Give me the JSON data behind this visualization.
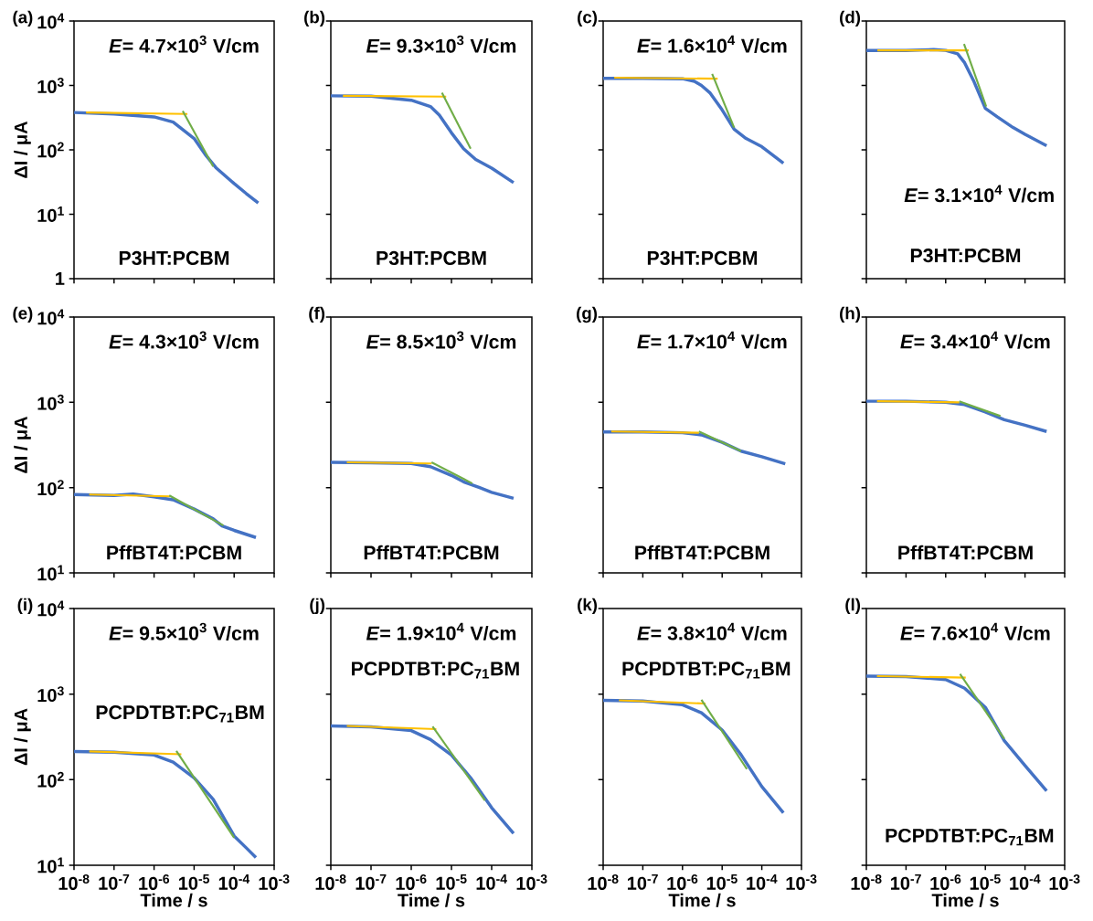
{
  "chart_data": [
    {
      "type": "line",
      "title": "(a)",
      "ylabel": "ΔI / μA",
      "log": "xy",
      "tick_labels": "y",
      "xlim": [
        1e-08,
        0.001
      ],
      "ylim": [
        1,
        10000
      ],
      "xticks": [
        {
          "value": 1e-08,
          "label": null
        },
        {
          "value": 1e-07,
          "label": null
        },
        {
          "value": 1e-06,
          "label": null
        },
        {
          "value": 1e-05,
          "label": null
        },
        {
          "value": 0.0001,
          "label": null
        },
        {
          "value": 0.001,
          "label": null
        }
      ],
      "yticks": [
        1,
        {
          "value": 10,
          "label": "10$^{1}$"
        },
        {
          "value": 100,
          "label": "10$^{2}$"
        },
        {
          "value": 1000,
          "label": "10$^{3}$"
        },
        {
          "value": 10000,
          "label": "10$^{4}$"
        }
      ],
      "annotations": [
        "*E*= 4.7×10$^{3}$ V/cm",
        "P3HT:PCBM"
      ],
      "series": [
        {
          "type": "line",
          "color": "#4472c4",
          "x": [
            1e-08,
            1e-07,
            1e-06,
            3e-06,
            1e-05,
            2e-05,
            3.5e-05,
            0.0001,
            0.0002,
            0.0004
          ],
          "values": [
            380,
            360,
            325,
            270,
            150,
            81,
            53,
            30,
            21,
            15
          ]
        },
        {
          "type": "line",
          "color": "#ffc000",
          "x": [
            2e-08,
            6.8e-06
          ],
          "values": [
            380,
            360
          ]
        },
        {
          "type": "line",
          "color": "#70ad47",
          "x": [
            5.2e-06,
            3e-05
          ],
          "values": [
            400,
            55
          ]
        }
      ]
    },
    {
      "type": "line",
      "title": "(b)",
      "log": "xy",
      "tick_labels": false,
      "xlim": [
        1e-08,
        0.001
      ],
      "ylim": [
        1,
        10000
      ],
      "xticks": [
        {
          "value": 1e-08,
          "label": null
        },
        {
          "value": 1e-07,
          "label": null
        },
        {
          "value": 1e-06,
          "label": null
        },
        {
          "value": 1e-05,
          "label": null
        },
        {
          "value": 0.0001,
          "label": null
        },
        {
          "value": 0.001,
          "label": null
        }
      ],
      "yticks": [
        {
          "value": 1,
          "label": null
        },
        {
          "value": 10,
          "label": null
        },
        {
          "value": 100,
          "label": null
        },
        {
          "value": 1000,
          "label": null
        },
        {
          "value": 10000,
          "label": null
        }
      ],
      "annotations": [
        "*E*= 9.3×10$^{3}$ V/cm",
        "P3HT:PCBM"
      ],
      "series": [
        {
          "type": "line",
          "color": "#4472c4",
          "x": [
            1e-08,
            1e-07,
            1e-06,
            3e-06,
            5e-06,
            1e-05,
            2e-05,
            4e-05,
            0.0001,
            0.00035
          ],
          "values": [
            690,
            680,
            590,
            470,
            345,
            184,
            104,
            71,
            52,
            31
          ]
        },
        {
          "type": "line",
          "color": "#ffc000",
          "x": [
            2e-08,
            7.4e-06
          ],
          "values": [
            690,
            670
          ]
        },
        {
          "type": "line",
          "color": "#70ad47",
          "x": [
            5.8e-06,
            3e-05
          ],
          "values": [
            770,
            104
          ]
        }
      ]
    },
    {
      "type": "line",
      "title": "(c)",
      "log": "xy",
      "tick_labels": false,
      "xlim": [
        1e-08,
        0.001
      ],
      "ylim": [
        1,
        10000
      ],
      "xticks": [
        {
          "value": 1e-08,
          "label": null
        },
        {
          "value": 1e-07,
          "label": null
        },
        {
          "value": 1e-06,
          "label": null
        },
        {
          "value": 1e-05,
          "label": null
        },
        {
          "value": 0.0001,
          "label": null
        },
        {
          "value": 0.001,
          "label": null
        }
      ],
      "yticks": [
        {
          "value": 1,
          "label": null
        },
        {
          "value": 10,
          "label": null
        },
        {
          "value": 100,
          "label": null
        },
        {
          "value": 1000,
          "label": null
        },
        {
          "value": 10000,
          "label": null
        }
      ],
      "annotations": [
        "*E*= 1.6×10$^{4}$ V/cm",
        "P3HT:PCBM"
      ],
      "series": [
        {
          "type": "line",
          "color": "#4472c4",
          "x": [
            1e-08,
            1e-07,
            1e-06,
            2e-06,
            3e-06,
            5e-06,
            1e-05,
            2e-05,
            4e-05,
            0.0001,
            0.00035
          ],
          "values": [
            1290,
            1290,
            1270,
            1160,
            1000,
            760,
            416,
            210,
            150,
            112,
            62
          ]
        },
        {
          "type": "line",
          "color": "#ffc000",
          "x": [
            1.9e-08,
            7.7e-06
          ],
          "values": [
            1320,
            1270
          ]
        },
        {
          "type": "line",
          "color": "#70ad47",
          "x": [
            5.6e-06,
            2e-05
          ],
          "values": [
            1510,
            222
          ]
        }
      ]
    },
    {
      "type": "line",
      "title": "(d)",
      "log": "xy",
      "tick_labels": false,
      "xlim": [
        1e-08,
        0.001
      ],
      "ylim": [
        1,
        10000
      ],
      "xticks": [
        {
          "value": 1e-08,
          "label": null
        },
        {
          "value": 1e-07,
          "label": null
        },
        {
          "value": 1e-06,
          "label": null
        },
        {
          "value": 1e-05,
          "label": null
        },
        {
          "value": 0.0001,
          "label": null
        },
        {
          "value": 0.001,
          "label": null
        }
      ],
      "yticks": [
        {
          "value": 1,
          "label": null
        },
        {
          "value": 10,
          "label": null
        },
        {
          "value": 100,
          "label": null
        },
        {
          "value": 1000,
          "label": null
        },
        {
          "value": 10000,
          "label": null
        }
      ],
      "annotations": [
        "*E*= 3.1×10$^{4}$ V/cm",
        "P3HT:PCBM"
      ],
      "series": [
        {
          "type": "line",
          "color": "#4472c4",
          "x": [
            1e-08,
            1e-07,
            5e-07,
            1e-06,
            2e-06,
            3e-06,
            5e-06,
            1e-05,
            2e-05,
            5e-05,
            0.0001,
            0.00035
          ],
          "values": [
            3500,
            3500,
            3600,
            3500,
            3100,
            2250,
            1200,
            440,
            325,
            222,
            174,
            116
          ]
        },
        {
          "type": "line",
          "color": "#ffc000",
          "x": [
            1.9e-08,
            3.8e-06
          ],
          "values": [
            3500,
            3500
          ]
        },
        {
          "type": "line",
          "color": "#70ad47",
          "x": [
            2.9e-06,
            1.05e-05
          ],
          "values": [
            4400,
            470
          ]
        }
      ]
    },
    {
      "type": "line",
      "title": "(e)",
      "ylabel": "ΔI / μA",
      "log": "xy",
      "tick_labels": "y",
      "xlim": [
        1e-08,
        0.001
      ],
      "ylim": [
        10,
        10000
      ],
      "xticks": [
        {
          "value": 1e-08,
          "label": null
        },
        {
          "value": 1e-07,
          "label": null
        },
        {
          "value": 1e-06,
          "label": null
        },
        {
          "value": 1e-05,
          "label": null
        },
        {
          "value": 0.0001,
          "label": null
        },
        {
          "value": 0.001,
          "label": null
        }
      ],
      "yticks": [
        {
          "value": 10,
          "label": "10$^{1}$"
        },
        {
          "value": 100,
          "label": "10$^{2}$"
        },
        {
          "value": 1000,
          "label": "10$^{3}$"
        },
        {
          "value": 10000,
          "label": "10$^{4}$"
        }
      ],
      "annotations": [
        "*E*= 4.3×10$^{3}$ V/cm",
        "PffBT4T:PCBM"
      ],
      "series": [
        {
          "type": "line",
          "color": "#4472c4",
          "x": [
            1e-08,
            1e-07,
            3e-07,
            1e-06,
            3e-06,
            1e-05,
            3e-05,
            5e-05,
            0.0001,
            0.00035
          ],
          "values": [
            83,
            81,
            84,
            78,
            72,
            56,
            43,
            35.5,
            31.5,
            26
          ]
        },
        {
          "type": "line",
          "color": "#ffc000",
          "x": [
            2.4e-08,
            2.5e-06
          ],
          "values": [
            83,
            79
          ]
        },
        {
          "type": "line",
          "color": "#70ad47",
          "x": [
            2.4e-06,
            5.4e-05
          ],
          "values": [
            81,
            36
          ]
        }
      ]
    },
    {
      "type": "line",
      "title": "(f)",
      "log": "xy",
      "tick_labels": false,
      "xlim": [
        1e-08,
        0.001
      ],
      "ylim": [
        10,
        10000
      ],
      "xticks": [
        {
          "value": 1e-08,
          "label": null
        },
        {
          "value": 1e-07,
          "label": null
        },
        {
          "value": 1e-06,
          "label": null
        },
        {
          "value": 1e-05,
          "label": null
        },
        {
          "value": 0.0001,
          "label": null
        },
        {
          "value": 0.001,
          "label": null
        }
      ],
      "yticks": [
        {
          "value": 10,
          "label": null
        },
        {
          "value": 100,
          "label": null
        },
        {
          "value": 1000,
          "label": null
        },
        {
          "value": 10000,
          "label": null
        }
      ],
      "annotations": [
        "*E*= 8.5×10$^{3}$ V/cm",
        "PffBT4T:PCBM"
      ],
      "series": [
        {
          "type": "line",
          "color": "#4472c4",
          "x": [
            1e-08,
            1e-07,
            1e-06,
            3e-06,
            1e-05,
            2e-05,
            5e-05,
            0.0001,
            0.00035
          ],
          "values": [
            198,
            195,
            192,
            176,
            139,
            117,
            100,
            88,
            75
          ]
        },
        {
          "type": "line",
          "color": "#ffc000",
          "x": [
            2.5e-08,
            3.2e-06
          ],
          "values": [
            198,
            192
          ]
        },
        {
          "type": "line",
          "color": "#70ad47",
          "x": [
            3.2e-06,
            3.3e-05
          ],
          "values": [
            198,
            112
          ]
        }
      ]
    },
    {
      "type": "line",
      "title": "(g)",
      "log": "xy",
      "tick_labels": false,
      "xlim": [
        1e-08,
        0.001
      ],
      "ylim": [
        10,
        10000
      ],
      "xticks": [
        {
          "value": 1e-08,
          "label": null
        },
        {
          "value": 1e-07,
          "label": null
        },
        {
          "value": 1e-06,
          "label": null
        },
        {
          "value": 1e-05,
          "label": null
        },
        {
          "value": 0.0001,
          "label": null
        },
        {
          "value": 0.001,
          "label": null
        }
      ],
      "yticks": [
        {
          "value": 10,
          "label": null
        },
        {
          "value": 100,
          "label": null
        },
        {
          "value": 1000,
          "label": null
        },
        {
          "value": 10000,
          "label": null
        }
      ],
      "annotations": [
        "*E*= 1.7×10$^{4}$ V/cm",
        "PffBT4T:PCBM"
      ],
      "series": [
        {
          "type": "line",
          "color": "#4472c4",
          "x": [
            1e-08,
            1e-07,
            1e-06,
            3e-06,
            1e-05,
            3e-05,
            0.0001,
            0.00039
          ],
          "values": [
            450,
            450,
            440,
            415,
            340,
            268,
            230,
            190
          ]
        },
        {
          "type": "line",
          "color": "#ffc000",
          "x": [
            1.6e-08,
            2.6e-06
          ],
          "values": [
            455,
            440
          ]
        },
        {
          "type": "line",
          "color": "#70ad47",
          "x": [
            2.6e-06,
            3e-05
          ],
          "values": [
            455,
            268
          ]
        }
      ]
    },
    {
      "type": "line",
      "title": "(h)",
      "log": "xy",
      "tick_labels": false,
      "xlim": [
        1e-08,
        0.001
      ],
      "ylim": [
        10,
        10000
      ],
      "xticks": [
        {
          "value": 1e-08,
          "label": null
        },
        {
          "value": 1e-07,
          "label": null
        },
        {
          "value": 1e-06,
          "label": null
        },
        {
          "value": 1e-05,
          "label": null
        },
        {
          "value": 0.0001,
          "label": null
        },
        {
          "value": 0.001,
          "label": null
        }
      ],
      "yticks": [
        {
          "value": 10,
          "label": null
        },
        {
          "value": 100,
          "label": null
        },
        {
          "value": 1000,
          "label": null
        },
        {
          "value": 10000,
          "label": null
        }
      ],
      "annotations": [
        "*E*= 3.4×10$^{4}$ V/cm",
        "PffBT4T:PCBM"
      ],
      "series": [
        {
          "type": "line",
          "color": "#4472c4",
          "x": [
            1e-08,
            1e-07,
            1e-06,
            3e-06,
            1e-05,
            3e-05,
            0.0001,
            0.00035
          ],
          "values": [
            1030,
            1030,
            1000,
            940,
            770,
            625,
            540,
            455
          ]
        },
        {
          "type": "line",
          "color": "#ffc000",
          "x": [
            1.85e-08,
            2.2e-06
          ],
          "values": [
            1030,
            1000
          ]
        },
        {
          "type": "line",
          "color": "#70ad47",
          "x": [
            2.2e-06,
            2.4e-05
          ],
          "values": [
            1030,
            690
          ]
        }
      ]
    },
    {
      "type": "line",
      "title": "(i)",
      "xlabel": "Time / s",
      "ylabel": "ΔI / μA",
      "log": "xy",
      "xlim": [
        1e-08,
        0.001
      ],
      "ylim": [
        10,
        10000
      ],
      "xticks": [
        {
          "value": 1e-08,
          "label": "10$^{-8}$"
        },
        {
          "value": 1e-07,
          "label": "10$^{-7}$"
        },
        {
          "value": 1e-06,
          "label": "10$^{-6}$"
        },
        {
          "value": 1e-05,
          "label": "10$^{-5}$"
        },
        {
          "value": 0.0001,
          "label": "10$^{-4}$"
        },
        {
          "value": 0.001,
          "label": "10$^{-3}$"
        }
      ],
      "yticks": [
        {
          "value": 10,
          "label": "10$^{1}$"
        },
        {
          "value": 100,
          "label": "10$^{2}$"
        },
        {
          "value": 1000,
          "label": "10$^{3}$"
        },
        {
          "value": 10000,
          "label": "10$^{4}$"
        }
      ],
      "annotations": [
        "*E*= 9.5×10$^{3}$ V/cm",
        "PCPDTBT:PC$_{71}$BM"
      ],
      "series": [
        {
          "type": "line",
          "color": "#4472c4",
          "x": [
            1e-08,
            1e-07,
            1e-06,
            3e-06,
            1e-05,
            3e-05,
            0.0001,
            0.0002,
            0.00035
          ],
          "values": [
            213,
            209,
            194,
            160,
            105,
            59,
            22,
            16,
            12.3
          ]
        },
        {
          "type": "line",
          "color": "#ffc000",
          "x": [
            2.4e-08,
            4.8e-06
          ],
          "values": [
            214,
            198
          ]
        },
        {
          "type": "line",
          "color": "#70ad47",
          "x": [
            3.6e-06,
            0.0001
          ],
          "values": [
            217,
            21
          ]
        }
      ]
    },
    {
      "type": "line",
      "title": "(j)",
      "xlabel": "Time / s",
      "log": "xy",
      "tick_labels": "x",
      "xlim": [
        1e-08,
        0.001
      ],
      "ylim": [
        10,
        10000
      ],
      "xticks": [
        {
          "value": 1e-08,
          "label": "10$^{-8}$"
        },
        {
          "value": 1e-07,
          "label": "10$^{-7}$"
        },
        {
          "value": 1e-06,
          "label": "10$^{-6}$"
        },
        {
          "value": 1e-05,
          "label": "10$^{-5}$"
        },
        {
          "value": 0.0001,
          "label": "10$^{-4}$"
        },
        {
          "value": 0.001,
          "label": "10$^{-3}$"
        }
      ],
      "yticks": [
        {
          "value": 10,
          "label": null
        },
        {
          "value": 100,
          "label": null
        },
        {
          "value": 1000,
          "label": null
        },
        {
          "value": 10000,
          "label": null
        }
      ],
      "annotations": [
        "*E*= 1.9×10$^{4}$ V/cm",
        "PCPDTBT:PC$_{71}$BM"
      ],
      "series": [
        {
          "type": "line",
          "color": "#4472c4",
          "x": [
            1e-08,
            1e-07,
            1e-06,
            3e-06,
            1e-05,
            3e-05,
            0.0001,
            0.00035
          ],
          "values": [
            425,
            415,
            375,
            295,
            194,
            105,
            47,
            23.5
          ]
        },
        {
          "type": "line",
          "color": "#ffc000",
          "x": [
            2.5e-08,
            4.2e-06
          ],
          "values": [
            425,
            390
          ]
        },
        {
          "type": "line",
          "color": "#70ad47",
          "x": [
            3.4e-06,
            6.8e-05
          ],
          "values": [
            418,
            57
          ]
        }
      ]
    },
    {
      "type": "line",
      "title": "(k)",
      "xlabel": "Time / s",
      "log": "xy",
      "tick_labels": "x",
      "xlim": [
        1e-08,
        0.001
      ],
      "ylim": [
        10,
        10000
      ],
      "xticks": [
        {
          "value": 1e-08,
          "label": "10$^{-8}$"
        },
        {
          "value": 1e-07,
          "label": "10$^{-7}$"
        },
        {
          "value": 1e-06,
          "label": "10$^{-6}$"
        },
        {
          "value": 1e-05,
          "label": "10$^{-5}$"
        },
        {
          "value": 0.0001,
          "label": "10$^{-4}$"
        },
        {
          "value": 0.001,
          "label": "10$^{-3}$"
        }
      ],
      "yticks": [
        {
          "value": 10,
          "label": null
        },
        {
          "value": 100,
          "label": null
        },
        {
          "value": 1000,
          "label": null
        },
        {
          "value": 10000,
          "label": null
        }
      ],
      "annotations": [
        "*E*= 3.8×10$^{4}$ V/cm",
        "PCPDTBT:PC$_{71}$BM"
      ],
      "series": [
        {
          "type": "line",
          "color": "#4472c4",
          "x": [
            1e-08,
            1e-07,
            1e-06,
            3e-06,
            1e-05,
            3e-05,
            0.0001,
            0.00035
          ],
          "values": [
            845,
            830,
            750,
            605,
            380,
            195,
            83,
            41
          ]
        },
        {
          "type": "line",
          "color": "#ffc000",
          "x": [
            2.5e-08,
            3.8e-06
          ],
          "values": [
            845,
            775
          ]
        },
        {
          "type": "line",
          "color": "#70ad47",
          "x": [
            3e-06,
            4.2e-05
          ],
          "values": [
            860,
            133
          ]
        }
      ]
    },
    {
      "type": "line",
      "title": "(l)",
      "xlabel": "Time / s",
      "log": "xy",
      "tick_labels": "x",
      "xlim": [
        1e-08,
        0.001
      ],
      "ylim": [
        10,
        10000
      ],
      "xticks": [
        {
          "value": 1e-08,
          "label": "10$^{-8}$"
        },
        {
          "value": 1e-07,
          "label": "10$^{-7}$"
        },
        {
          "value": 1e-06,
          "label": "10$^{-6}$"
        },
        {
          "value": 1e-05,
          "label": "10$^{-5}$"
        },
        {
          "value": 0.0001,
          "label": "10$^{-4}$"
        },
        {
          "value": 0.001,
          "label": "10$^{-3}$"
        }
      ],
      "yticks": [
        {
          "value": 10,
          "label": null
        },
        {
          "value": 100,
          "label": null
        },
        {
          "value": 1000,
          "label": null
        },
        {
          "value": 10000,
          "label": null
        }
      ],
      "annotations": [
        "*E*= 7.6×10$^{4}$ V/cm",
        "PCPDTBT:PC$_{71}$BM"
      ],
      "series": [
        {
          "type": "line",
          "color": "#4472c4",
          "x": [
            1e-08,
            1e-07,
            1e-06,
            3e-06,
            1e-05,
            3e-05,
            0.0001,
            0.00035
          ],
          "values": [
            1620,
            1600,
            1480,
            1170,
            700,
            285,
            146,
            74
          ]
        },
        {
          "type": "line",
          "color": "#ffc000",
          "x": [
            1.85e-08,
            3.2e-06
          ],
          "values": [
            1620,
            1560
          ]
        },
        {
          "type": "line",
          "color": "#70ad47",
          "x": [
            2.3e-06,
            3e-05
          ],
          "values": [
            1720,
            300
          ]
        }
      ]
    }
  ]
}
